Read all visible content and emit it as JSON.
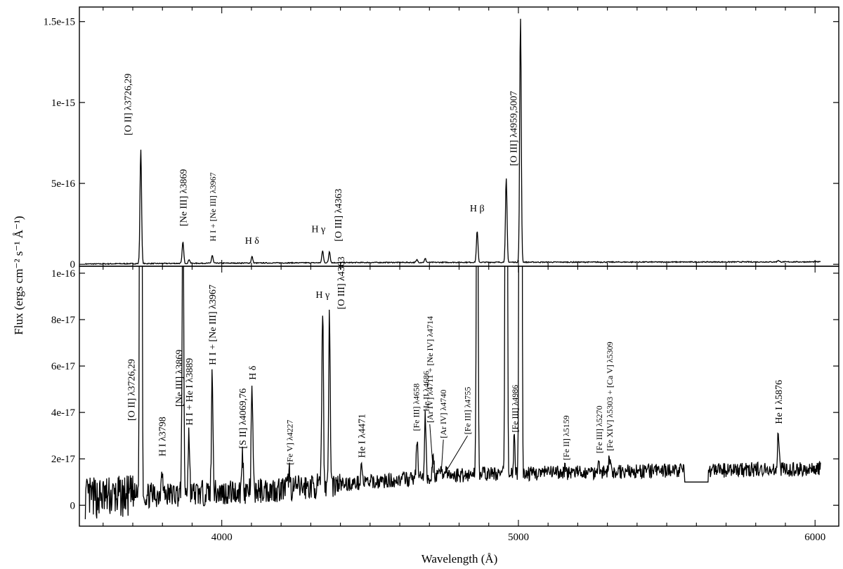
{
  "chart_data": [
    {
      "type": "line",
      "panel": "top",
      "title": "",
      "xlabel": "",
      "ylabel": "",
      "xlim": [
        3520,
        6080
      ],
      "ylim": [
        -1.2e-17,
        1.59e-15
      ],
      "y_ticks": [
        {
          "value": 0,
          "label": "0"
        },
        {
          "value": 5e-16,
          "label": "5e-16"
        },
        {
          "value": 1e-15,
          "label": "1e-15"
        },
        {
          "value": 1.5e-15,
          "label": "1.5e-15"
        }
      ],
      "continuum": {
        "x": [
          3540,
          3700,
          4000,
          4500,
          5000,
          5500,
          6020
        ],
        "y": [
          2e-18,
          4e-18,
          7e-18,
          1.1e-17,
          1.3e-17,
          1.4e-17,
          1.5e-17
        ]
      },
      "lines": [
        {
          "wavelength": 3727,
          "peak": 7.1e-16,
          "label": "[O II] λ3726,29"
        },
        {
          "wavelength": 3869,
          "peak": 1.4e-16,
          "label": "[Ne III] λ3869"
        },
        {
          "wavelength": 3968,
          "peak": 5.5e-17,
          "label": "H I + [Ne III] λ3967"
        },
        {
          "wavelength": 4102,
          "peak": 4.8e-17,
          "label": "H δ"
        },
        {
          "wavelength": 4340,
          "peak": 8.5e-17,
          "label": "H γ"
        },
        {
          "wavelength": 4363,
          "peak": 8e-17,
          "label": "[O III] λ4363"
        },
        {
          "wavelength": 4861,
          "peak": 2.05e-16,
          "label": "H β"
        },
        {
          "wavelength": 4959,
          "peak": 5.3e-16,
          "label": "[O III] λ4959,5007"
        },
        {
          "wavelength": 5007,
          "peak": 1.52e-15,
          "label": ""
        },
        {
          "wavelength": 4686,
          "peak": 3.5e-17,
          "label": ""
        },
        {
          "wavelength": 4658,
          "peak": 2.8e-17,
          "label": ""
        },
        {
          "wavelength": 5876,
          "peak": 2.5e-17,
          "label": ""
        },
        {
          "wavelength": 3890,
          "peak": 3e-17,
          "label": ""
        }
      ]
    },
    {
      "type": "line",
      "panel": "bottom",
      "title": "",
      "xlabel": "Wavelength (Å)",
      "ylabel": "Flux (ergs cm⁻² s⁻¹ Å⁻¹)",
      "xlim": [
        3520,
        6080
      ],
      "ylim": [
        -9e-18,
        1.03e-16
      ],
      "x_ticks": [
        {
          "value": 4000,
          "label": "4000"
        },
        {
          "value": 5000,
          "label": "5000"
        },
        {
          "value": 6000,
          "label": "6000"
        }
      ],
      "y_ticks": [
        {
          "value": 0,
          "label": "0"
        },
        {
          "value": 2e-17,
          "label": "2e-17"
        },
        {
          "value": 4e-17,
          "label": "4e-17"
        },
        {
          "value": 6e-17,
          "label": "6e-17"
        },
        {
          "value": 8e-17,
          "label": "8e-17"
        },
        {
          "value": 1e-16,
          "label": "1e-16"
        }
      ],
      "continuum": {
        "x": [
          3540,
          3600,
          3700,
          3800,
          3900,
          4000,
          4100,
          4200,
          4300,
          4400,
          4500,
          4600,
          4700,
          4800,
          4900,
          5000,
          5100,
          5200,
          5300,
          5400,
          5500,
          5560,
          5640,
          5700,
          5800,
          5900,
          6020
        ],
        "y": [
          3e-18,
          3.5e-18,
          4e-18,
          4.5e-18,
          5e-18,
          5.5e-18,
          6e-18,
          7e-18,
          8e-18,
          9e-18,
          1e-17,
          1.1e-17,
          1.2e-17,
          1.3e-17,
          1.35e-17,
          1.35e-17,
          1.4e-17,
          1.4e-17,
          1.45e-17,
          1.45e-17,
          1.5e-17,
          1.5e-17,
          1.5e-17,
          1.5e-17,
          1.55e-17,
          1.55e-17,
          1.6e-17
        ]
      },
      "gap": [
        5560,
        5640,
        1e-17
      ],
      "lines": [
        {
          "wavelength": 3727,
          "peak": 7.1e-16,
          "label": "[O II] λ3726,29"
        },
        {
          "wavelength": 3798,
          "peak": 1.8e-17,
          "label": "H I λ3798"
        },
        {
          "wavelength": 3869,
          "peak": 1.4e-16,
          "label": "[Ne III] λ3869"
        },
        {
          "wavelength": 3889,
          "peak": 3.2e-17,
          "label": "H I + He I λ3889"
        },
        {
          "wavelength": 3968,
          "peak": 5.8e-17,
          "label": "H I + [Ne III] λ3967"
        },
        {
          "wavelength": 4070,
          "peak": 2.2e-17,
          "label": "[S II] λ4069,76"
        },
        {
          "wavelength": 4102,
          "peak": 5.1e-17,
          "label": "H δ"
        },
        {
          "wavelength": 4227,
          "peak": 1.5e-17,
          "label": "[Fe V] λ4227"
        },
        {
          "wavelength": 4340,
          "peak": 8.7e-17,
          "label": "H γ"
        },
        {
          "wavelength": 4363,
          "peak": 8.2e-17,
          "label": "[O III] λ4363"
        },
        {
          "wavelength": 4471,
          "peak": 1.8e-17,
          "label": "He I λ4471"
        },
        {
          "wavelength": 4658,
          "peak": 2.9e-17,
          "label": "[Fe III] λ4658"
        },
        {
          "wavelength": 4686,
          "peak": 3.8e-17,
          "label": "He II λ4686"
        },
        {
          "wavelength": 4713,
          "peak": 2.1e-17,
          "label": "[Ar IV] λ4711 + [Ne IV] λ4714"
        },
        {
          "wavelength": 4740,
          "peak": 1.8e-17,
          "label": "[Ar IV] λ4740"
        },
        {
          "wavelength": 4755,
          "peak": 1.6e-17,
          "label": "[Fe III] λ4755"
        },
        {
          "wavelength": 4861,
          "peak": 2.05e-16,
          "label": ""
        },
        {
          "wavelength": 4959,
          "peak": 5.3e-16,
          "label": ""
        },
        {
          "wavelength": 4986,
          "peak": 2.9e-17,
          "label": "[Fe III] λ4986"
        },
        {
          "wavelength": 5007,
          "peak": 1.52e-15,
          "label": ""
        },
        {
          "wavelength": 5159,
          "peak": 1.7e-17,
          "label": "[Fe II] λ5159"
        },
        {
          "wavelength": 5270,
          "peak": 2e-17,
          "label": "[Fe III] λ5270"
        },
        {
          "wavelength": 5306,
          "peak": 2.1e-17,
          "label": "[Fe XIV] λ5303 + [Ca V] λ5309"
        },
        {
          "wavelength": 5876,
          "peak": 3.2e-17,
          "label": "He I λ5876"
        }
      ]
    }
  ]
}
